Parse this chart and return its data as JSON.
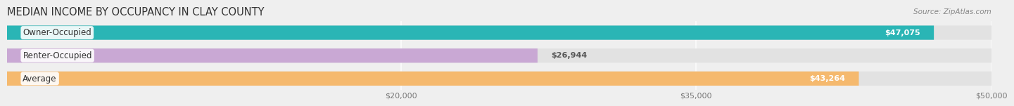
{
  "title": "MEDIAN INCOME BY OCCUPANCY IN CLAY COUNTY",
  "source": "Source: ZipAtlas.com",
  "categories": [
    "Owner-Occupied",
    "Renter-Occupied",
    "Average"
  ],
  "values": [
    47075,
    26944,
    43264
  ],
  "bar_colors": [
    "#2ab5b5",
    "#c9a8d4",
    "#f5b96e"
  ],
  "value_labels": [
    "$47,075",
    "$26,944",
    "$43,264"
  ],
  "xlim": [
    0,
    50000
  ],
  "xticks": [
    20000,
    35000,
    50000
  ],
  "xtick_labels": [
    "$20,000",
    "$35,000",
    "$50,000"
  ],
  "bg_color": "#efefef",
  "bar_bg_color": "#e2e2e2",
  "bar_height": 0.62,
  "title_fontsize": 10.5,
  "label_fontsize": 8.5,
  "value_fontsize": 8,
  "source_fontsize": 7.5
}
